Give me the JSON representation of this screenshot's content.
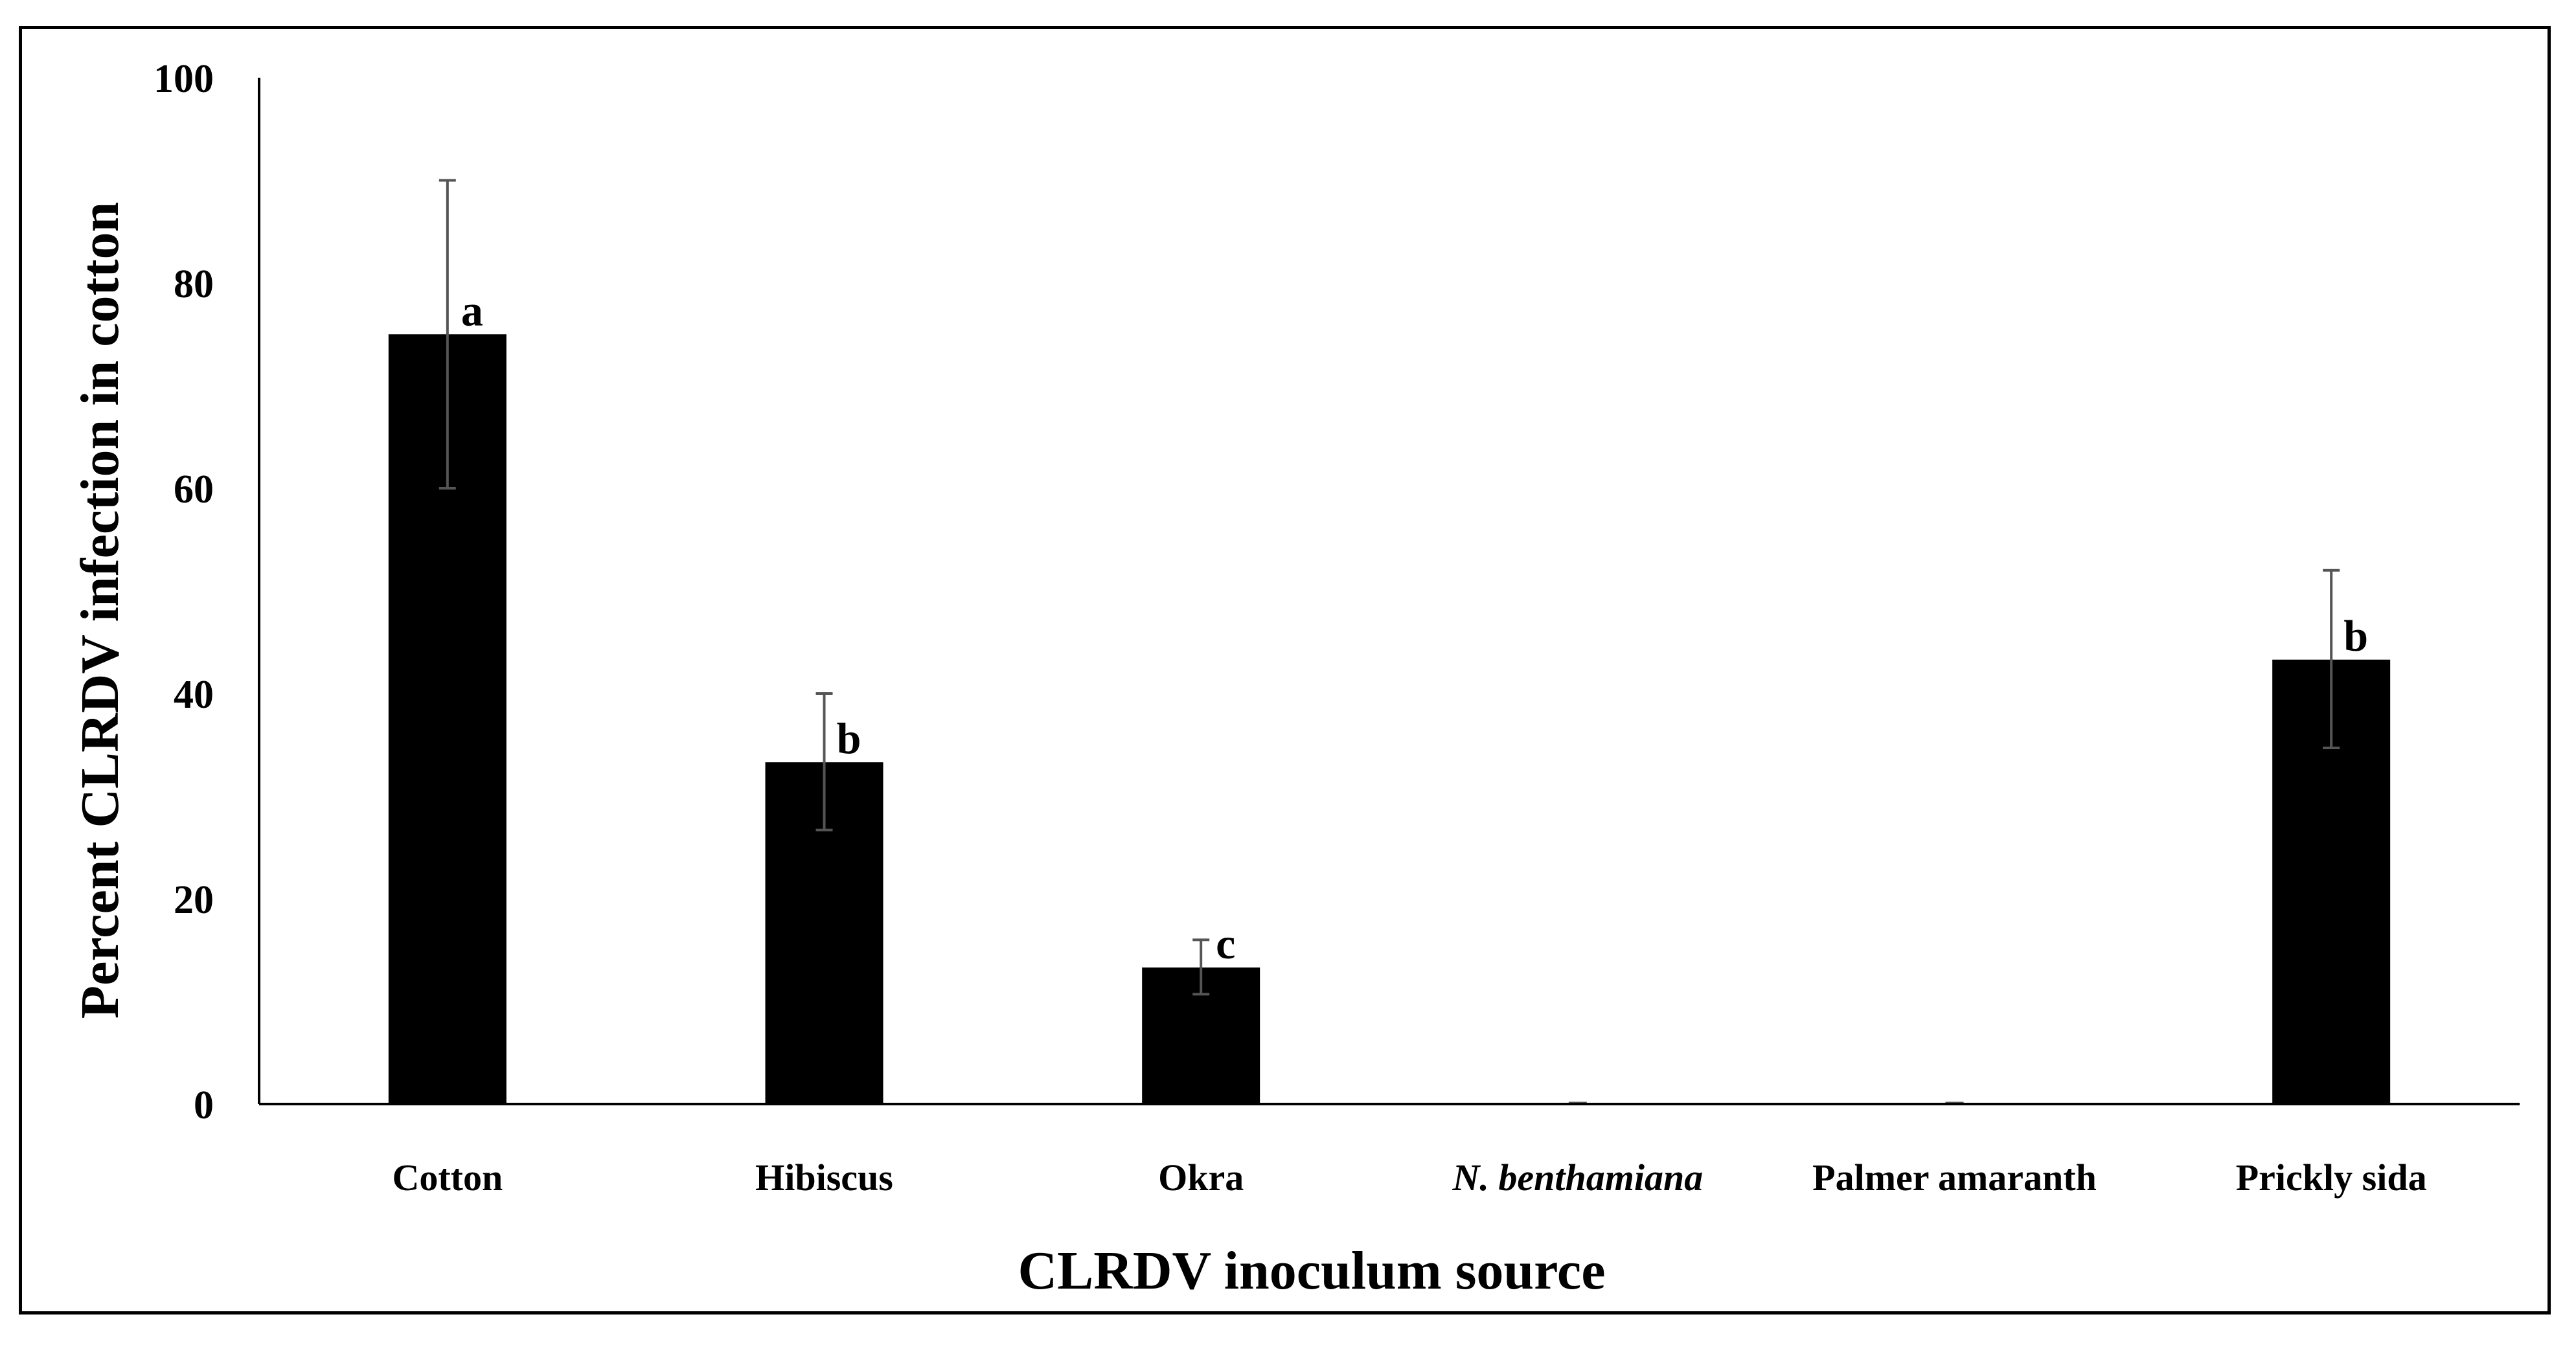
{
  "chart_data": {
    "type": "bar",
    "xlabel": "CLRDV inoculum source",
    "ylabel": "Percent CLRDV infection in cotton",
    "ylim": [
      0,
      100
    ],
    "yticks": [
      0,
      20,
      40,
      60,
      80,
      100
    ],
    "categories": [
      "Cotton",
      "Hibiscus",
      "Okra",
      "N. benthamiana",
      "Palmer amaranth",
      "Prickly sida"
    ],
    "italic_categories": [
      "N. benthamiana"
    ],
    "values": [
      75,
      33.3,
      13.3,
      0,
      0,
      43.3
    ],
    "error_low": [
      60,
      26.7,
      10.7,
      0,
      0,
      34.7
    ],
    "error_high": [
      90,
      40,
      16,
      0,
      0,
      52
    ],
    "significance_letters": [
      "a",
      "b",
      "c",
      "",
      "",
      "b"
    ],
    "grid": false,
    "colors": {
      "bar": "#000000",
      "error_bar": "#555555",
      "axis": "#000000"
    }
  }
}
